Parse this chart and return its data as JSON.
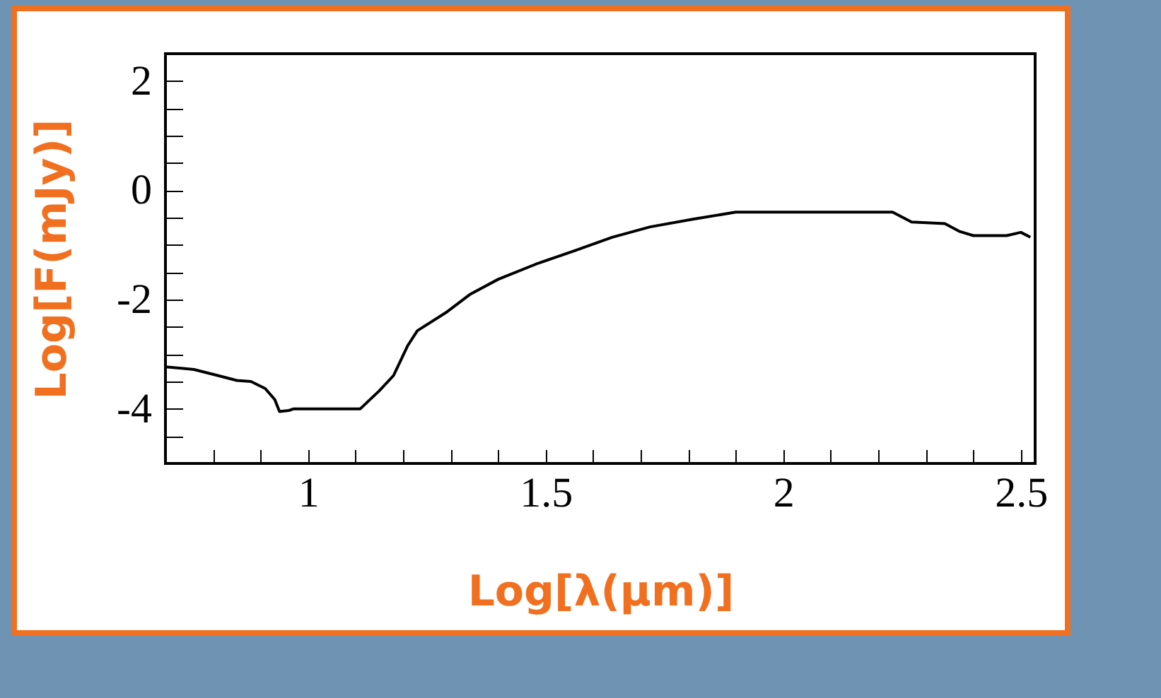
{
  "chart_data": {
    "type": "line",
    "xlabel": "Log[λ(μm)]",
    "ylabel": "Log[F(mJy)]",
    "x": [
      0.7,
      0.76,
      0.81,
      0.85,
      0.88,
      0.91,
      0.93,
      0.94,
      0.96,
      0.97,
      1.11,
      1.15,
      1.18,
      1.21,
      1.23,
      1.29,
      1.34,
      1.4,
      1.48,
      1.56,
      1.64,
      1.72,
      1.81,
      1.9,
      2.23,
      2.27,
      2.34,
      2.37,
      2.4,
      2.47,
      2.5,
      2.52
    ],
    "series": [
      {
        "color": "#000000",
        "values": [
          -3.23,
          -3.28,
          -3.39,
          -3.48,
          -3.5,
          -3.63,
          -3.83,
          -4.05,
          -4.03,
          -4.0,
          -4.0,
          -3.67,
          -3.39,
          -2.84,
          -2.57,
          -2.24,
          -1.91,
          -1.63,
          -1.35,
          -1.11,
          -0.86,
          -0.67,
          -0.53,
          -0.4,
          -0.4,
          -0.58,
          -0.61,
          -0.75,
          -0.83,
          -0.83,
          -0.77,
          -0.86
        ]
      }
    ],
    "xlim": [
      0.7,
      2.53
    ],
    "xticks": [
      {
        "value": 0.7,
        "label": null
      },
      {
        "value": 0.8,
        "label": null
      },
      {
        "value": 0.9,
        "label": null
      },
      1,
      {
        "value": 1.1,
        "label": null
      },
      {
        "value": 1.2,
        "label": null
      },
      {
        "value": 1.3,
        "label": null
      },
      {
        "value": 1.4,
        "label": null
      },
      1.5,
      {
        "value": 1.6,
        "label": null
      },
      {
        "value": 1.7,
        "label": null
      },
      {
        "value": 1.8,
        "label": null
      },
      {
        "value": 1.9,
        "label": null
      },
      2,
      {
        "value": 2.1,
        "label": null
      },
      {
        "value": 2.2,
        "label": null
      },
      {
        "value": 2.3,
        "label": null
      },
      {
        "value": 2.4,
        "label": null
      },
      2.5
    ],
    "ylim": [
      -5,
      2.5
    ],
    "yticks": [
      {
        "value": -4.5,
        "label": null
      },
      -4,
      {
        "value": -3.5,
        "label": null
      },
      {
        "value": -3,
        "label": null
      },
      {
        "value": -2.5,
        "label": null
      },
      -2,
      {
        "value": -1.5,
        "label": null
      },
      {
        "value": -1,
        "label": null
      },
      {
        "value": -0.5,
        "label": null
      },
      0,
      {
        "value": 0.5,
        "label": null
      },
      {
        "value": 1,
        "label": null
      },
      {
        "value": 1.5,
        "label": null
      },
      2
    ],
    "grid": false,
    "line_style": "solid",
    "marker": "none"
  }
}
